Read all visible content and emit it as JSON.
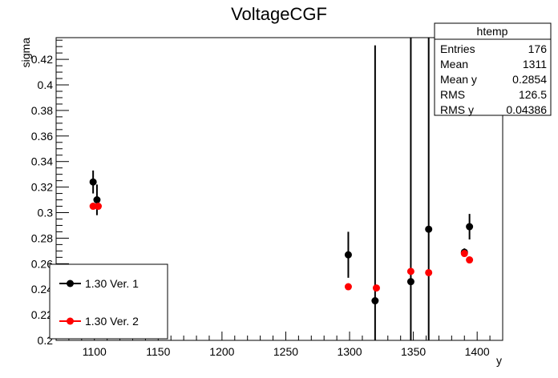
{
  "chart_data": {
    "type": "scatter",
    "title": "VoltageCGF",
    "xlabel": "y",
    "ylabel": "sigma",
    "xlim": [
      1070,
      1420
    ],
    "ylim": [
      0.2,
      0.437
    ],
    "x_ticks": [
      1100,
      1150,
      1200,
      1250,
      1300,
      1350,
      1400
    ],
    "x_tick_labels": [
      "1100",
      "1150",
      "1200",
      "1250",
      "1300",
      "1350",
      "1400"
    ],
    "y_ticks": [
      0.2,
      0.22,
      0.24,
      0.26,
      0.28,
      0.3,
      0.32,
      0.34,
      0.36,
      0.38,
      0.4,
      0.42
    ],
    "y_tick_labels": [
      "0.2",
      "0.22",
      "0.24",
      "0.26",
      "0.28",
      "0.3",
      "0.32",
      "0.34",
      "0.36",
      "0.38",
      "0.4",
      "0.42"
    ],
    "grid": false,
    "legend_position": "bottom-left",
    "series": [
      {
        "name": "1.30 Ver. 1",
        "color": "#000000",
        "points": [
          {
            "x": 1099,
            "y": 0.324,
            "err": 0.009
          },
          {
            "x": 1102,
            "y": 0.31,
            "err": 0.012
          },
          {
            "x": 1299,
            "y": 0.267,
            "err": 0.018
          },
          {
            "x": 1320,
            "y": 0.231,
            "err": 0.2
          },
          {
            "x": 1348,
            "y": 0.246,
            "err": 0.2
          },
          {
            "x": 1362,
            "y": 0.287,
            "err": 0.2
          },
          {
            "x": 1390,
            "y": 0.269,
            "err": 0.003
          },
          {
            "x": 1394,
            "y": 0.289,
            "err": 0.01
          }
        ]
      },
      {
        "name": "1.30 Ver. 2",
        "color": "#ff0000",
        "points": [
          {
            "x": 1099,
            "y": 0.305
          },
          {
            "x": 1103,
            "y": 0.305
          },
          {
            "x": 1299,
            "y": 0.242
          },
          {
            "x": 1321,
            "y": 0.241
          },
          {
            "x": 1348,
            "y": 0.254
          },
          {
            "x": 1362,
            "y": 0.253
          },
          {
            "x": 1390,
            "y": 0.268
          },
          {
            "x": 1394,
            "y": 0.263
          }
        ]
      }
    ],
    "stats_box": {
      "title": "htemp",
      "rows": [
        {
          "label": "Entries",
          "value": "176"
        },
        {
          "label": "Mean",
          "value": "1311"
        },
        {
          "label": "Mean y",
          "value": "0.2854"
        },
        {
          "label": "RMS",
          "value": "126.5"
        },
        {
          "label": "RMS y",
          "value": "0.04386"
        }
      ]
    }
  }
}
